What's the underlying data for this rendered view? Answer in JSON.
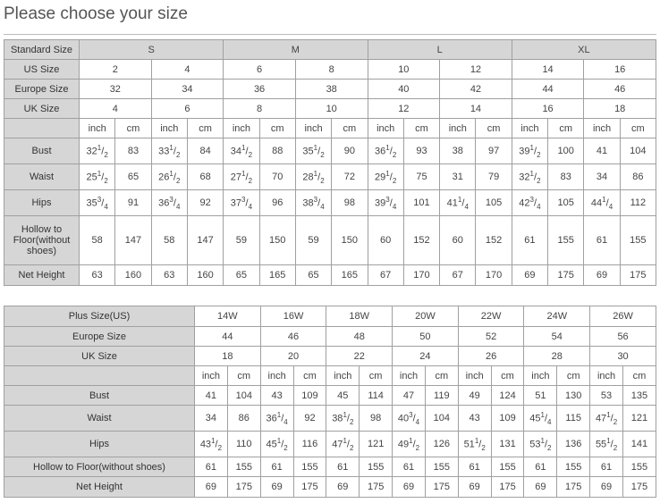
{
  "title": "Please choose your size",
  "standard_table": {
    "header": {
      "label": "Standard Size",
      "groups": [
        "S",
        "M",
        "L",
        "XL"
      ]
    },
    "size_rows": [
      {
        "label": "US Size",
        "values": [
          "2",
          "4",
          "6",
          "8",
          "10",
          "12",
          "14",
          "16"
        ]
      },
      {
        "label": "Europe Size",
        "values": [
          "32",
          "34",
          "36",
          "38",
          "40",
          "42",
          "44",
          "46"
        ]
      },
      {
        "label": "UK Size",
        "values": [
          "4",
          "6",
          "8",
          "10",
          "12",
          "14",
          "16",
          "18"
        ]
      }
    ],
    "units": [
      "inch",
      "cm"
    ],
    "measure_rows": [
      {
        "label": "Bust",
        "values": [
          "32 1/2",
          "83",
          "33 1/2",
          "84",
          "34 1/2",
          "88",
          "35 1/2",
          "90",
          "36 1/2",
          "93",
          "38",
          "97",
          "39 1/2",
          "100",
          "41",
          "104"
        ]
      },
      {
        "label": "Waist",
        "values": [
          "25 1/2",
          "65",
          "26 1/2",
          "68",
          "27 1/2",
          "70",
          "28 1/2",
          "72",
          "29 1/2",
          "75",
          "31",
          "79",
          "32 1/2",
          "83",
          "34",
          "86"
        ]
      },
      {
        "label": "Hips",
        "values": [
          "35 3/4",
          "91",
          "36 3/4",
          "92",
          "37 3/4",
          "96",
          "38 3/4",
          "98",
          "39 3/4",
          "101",
          "41 1/4",
          "105",
          "42 3/4",
          "105",
          "44 1/4",
          "112"
        ]
      },
      {
        "label": "Hollow to Floor(without shoes)",
        "values": [
          "58",
          "147",
          "58",
          "147",
          "59",
          "150",
          "59",
          "150",
          "60",
          "152",
          "60",
          "152",
          "61",
          "155",
          "61",
          "155"
        ]
      },
      {
        "label": "Net Height",
        "values": [
          "63",
          "160",
          "63",
          "160",
          "65",
          "165",
          "65",
          "165",
          "67",
          "170",
          "67",
          "170",
          "69",
          "175",
          "69",
          "175"
        ]
      }
    ]
  },
  "plus_table": {
    "size_rows": [
      {
        "label": "Plus Size(US)",
        "values": [
          "14W",
          "16W",
          "18W",
          "20W",
          "22W",
          "24W",
          "26W"
        ]
      },
      {
        "label": "Europe Size",
        "values": [
          "44",
          "46",
          "48",
          "50",
          "52",
          "54",
          "56"
        ]
      },
      {
        "label": "UK Size",
        "values": [
          "18",
          "20",
          "22",
          "24",
          "26",
          "28",
          "30"
        ]
      }
    ],
    "units": [
      "inch",
      "cm"
    ],
    "measure_rows": [
      {
        "label": "Bust",
        "values": [
          "41",
          "104",
          "43",
          "109",
          "45",
          "114",
          "47",
          "119",
          "49",
          "124",
          "51",
          "130",
          "53",
          "135"
        ]
      },
      {
        "label": "Waist",
        "values": [
          "34",
          "86",
          "36 1/4",
          "92",
          "38 1/2",
          "98",
          "40 3/4",
          "104",
          "43",
          "109",
          "45 1/4",
          "115",
          "47 1/2",
          "121"
        ]
      },
      {
        "label": "Hips",
        "values": [
          "43 1/2",
          "110",
          "45 1/2",
          "116",
          "47 1/2",
          "121",
          "49 1/2",
          "126",
          "51 1/2",
          "131",
          "53 1/2",
          "136",
          "55 1/2",
          "141"
        ]
      },
      {
        "label": "Hollow to Floor(without shoes)",
        "values": [
          "61",
          "155",
          "61",
          "155",
          "61",
          "155",
          "61",
          "155",
          "61",
          "155",
          "61",
          "155",
          "61",
          "155"
        ]
      },
      {
        "label": "Net Height",
        "values": [
          "69",
          "175",
          "69",
          "175",
          "69",
          "175",
          "69",
          "175",
          "69",
          "175",
          "69",
          "175",
          "69",
          "175"
        ]
      }
    ]
  },
  "colors": {
    "header_bg": "#d6d6d6",
    "border": "#a0a0a0"
  }
}
